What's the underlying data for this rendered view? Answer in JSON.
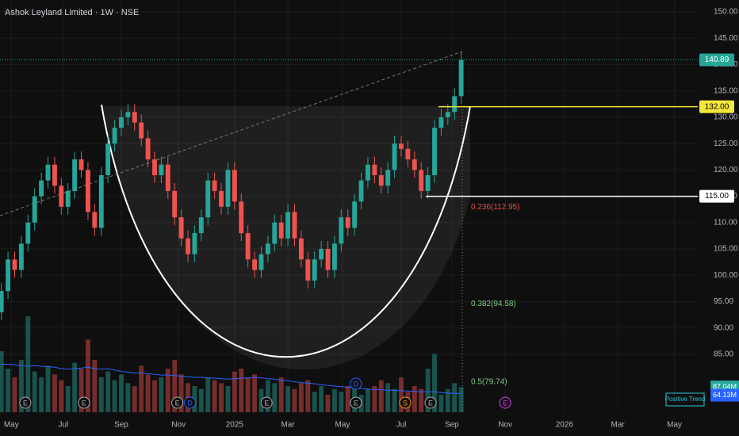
{
  "chart_data": {
    "type": "candlestick",
    "title": "Ashok Leyland Limited · 1W · NSE",
    "open": [
      93,
      97,
      103,
      101,
      106,
      110,
      115,
      118,
      121,
      117,
      113,
      116,
      122,
      120,
      112,
      109,
      119,
      125,
      128,
      130,
      131,
      129,
      126,
      122,
      119,
      121,
      116,
      111,
      107,
      104,
      108,
      111,
      118,
      116,
      113,
      120,
      114,
      108,
      103,
      101,
      104,
      106,
      110,
      107,
      112,
      107,
      103,
      99,
      103,
      105,
      101,
      106,
      111,
      109,
      114,
      118,
      121,
      119,
      117,
      120,
      125,
      124,
      122,
      120,
      116,
      119,
      128,
      130,
      131,
      134
    ],
    "high": [
      98.5,
      104.5,
      104.5,
      107.5,
      111.5,
      116.5,
      119.5,
      122.5,
      122.5,
      118.5,
      117.5,
      123.5,
      123.5,
      121.5,
      113.5,
      120.5,
      126.5,
      129.5,
      131.5,
      132.5,
      132.5,
      130.5,
      127.5,
      123.5,
      122.5,
      122.5,
      117.5,
      112.5,
      108.5,
      109.5,
      112.5,
      119.5,
      119.5,
      117.5,
      121.5,
      121.5,
      115.5,
      109.5,
      104.5,
      105.5,
      107.5,
      111.5,
      111.5,
      113.5,
      113.5,
      108.5,
      104.5,
      104.5,
      106.5,
      106.5,
      107.5,
      112.5,
      112.5,
      115.5,
      119.5,
      122.5,
      122.5,
      120.5,
      121.5,
      126.5,
      126.5,
      125.5,
      123.5,
      121.5,
      120.5,
      129.5,
      131.5,
      132.5,
      135.5,
      142.4
    ],
    "low": [
      91.5,
      95.5,
      99.5,
      99.5,
      104.5,
      108.5,
      113.5,
      116.5,
      115.5,
      111.5,
      111.5,
      114.5,
      118.5,
      110.5,
      107.5,
      107.5,
      117.5,
      123.5,
      126.5,
      128.5,
      127.5,
      124.5,
      120.5,
      117.5,
      117.5,
      114.5,
      109.5,
      105.5,
      102.5,
      102.5,
      106.5,
      109.5,
      114.5,
      111.5,
      111.5,
      112.5,
      106.5,
      101.5,
      99.5,
      99.5,
      102.5,
      104.5,
      105.5,
      105.5,
      105.5,
      101.5,
      97.5,
      97.5,
      101.5,
      99.5,
      99.5,
      104.5,
      107.5,
      107.5,
      112.5,
      116.5,
      117.5,
      115.5,
      115.5,
      118.5,
      122.5,
      120.5,
      118.5,
      114.5,
      114.5,
      117.5,
      126.5,
      128.5,
      129.5,
      132.5
    ],
    "close": [
      97,
      103,
      101,
      106,
      110,
      115,
      118,
      121,
      117,
      113,
      116,
      122,
      120,
      112,
      109,
      119,
      125,
      128,
      130,
      131,
      129,
      126,
      122,
      119,
      121,
      116,
      111,
      107,
      104,
      108,
      111,
      118,
      116,
      113,
      120,
      114,
      108,
      103,
      101,
      104,
      106,
      110,
      107,
      112,
      107,
      103,
      99,
      103,
      105,
      101,
      106,
      111,
      109,
      114,
      118,
      121,
      119,
      117,
      120,
      125,
      124,
      122,
      120,
      116,
      119,
      128,
      130,
      131,
      134,
      140.89
    ],
    "close_label": "140.89",
    "volume": [
      210,
      150,
      120,
      180,
      330,
      140,
      120,
      160,
      130,
      110,
      90,
      170,
      150,
      250,
      180,
      120,
      140,
      110,
      130,
      100,
      90,
      160,
      130,
      110,
      120,
      150,
      180,
      130,
      100,
      90,
      80,
      120,
      110,
      100,
      90,
      140,
      150,
      120,
      130,
      80,
      110,
      100,
      120,
      90,
      80,
      100,
      110,
      70,
      90,
      60,
      80,
      70,
      90,
      100,
      60,
      80,
      90,
      110,
      100,
      80,
      120,
      70,
      90,
      80,
      150,
      200,
      60,
      80,
      100,
      87.04
    ],
    "volume_label": "87.04M",
    "volume_ma": [
      165,
      165,
      163,
      160,
      158,
      160,
      158,
      157,
      155,
      150,
      148,
      150,
      152,
      155,
      150,
      148,
      150,
      145,
      140,
      138,
      135,
      135,
      133,
      130,
      128,
      128,
      126,
      124,
      122,
      120,
      120,
      118,
      117,
      115,
      114,
      115,
      117,
      118,
      120,
      118,
      115,
      114,
      110,
      108,
      105,
      102,
      100,
      98,
      95,
      92,
      90,
      88,
      86,
      84,
      82,
      80,
      78,
      77,
      76,
      75,
      74,
      73,
      72,
      70,
      70,
      70,
      68,
      66,
      65,
      64.13
    ],
    "volume_ma_label": "64.13M",
    "vlim": [
      0,
      300
    ],
    "xlim": [
      -0.2,
      104.5
    ],
    "xticks": [
      {
        "value": 1.5,
        "label": "May"
      },
      {
        "value": 9.3,
        "label": "Jul"
      },
      {
        "value": 18,
        "label": "Sep"
      },
      {
        "value": 26.6,
        "label": "Nov"
      },
      {
        "value": 35,
        "label": "2025"
      },
      {
        "value": 43,
        "label": "Mar"
      },
      {
        "value": 51.2,
        "label": "May"
      },
      {
        "value": 60,
        "label": "Jul"
      },
      {
        "value": 67.6,
        "label": "Sep"
      },
      {
        "value": 75.6,
        "label": "Nov"
      },
      {
        "value": 84.5,
        "label": "2026"
      },
      {
        "value": 92.5,
        "label": "Mar"
      },
      {
        "value": 101,
        "label": "May"
      }
    ],
    "ylim": [
      74,
      152.26
    ],
    "yticks": [
      {
        "value": 85,
        "label": "85.00"
      },
      {
        "value": 90,
        "label": "90.00"
      },
      {
        "value": 95,
        "label": "95.00"
      },
      {
        "value": 100,
        "label": "100.00"
      },
      {
        "value": 105,
        "label": "105.00"
      },
      {
        "value": 110,
        "label": "110.00"
      },
      {
        "value": 115,
        "label": "115.00"
      },
      {
        "value": 120,
        "label": "120.00"
      },
      {
        "value": 125,
        "label": "125.00"
      },
      {
        "value": 130,
        "label": "130.00"
      },
      {
        "value": 135,
        "label": "135.00"
      },
      {
        "value": 140,
        "label": "140.00"
      },
      {
        "value": 145,
        "label": "145.00"
      },
      {
        "value": 150,
        "label": "150.00"
      }
    ],
    "levels": [
      {
        "value": 132,
        "label": "132.00",
        "color": "#f5e63c"
      },
      {
        "value": 115,
        "label": "115.00",
        "color": "#ffffff"
      }
    ],
    "fib": [
      {
        "value": 112.95,
        "label": "0.236(112.95)",
        "color": "#e0524f"
      },
      {
        "value": 94.58,
        "label": "0.382(94.58)",
        "color": "#81c784"
      },
      {
        "value": 79.74,
        "label": "0.5(79.74)",
        "color": "#81c784"
      }
    ],
    "events": [
      {
        "x": 3.6,
        "label": "E"
      },
      {
        "x": 12.4,
        "label": "E"
      },
      {
        "x": 26.4,
        "label": "E"
      },
      {
        "x": 28.3,
        "label": "D"
      },
      {
        "x": 39.8,
        "label": "E"
      },
      {
        "x": 53.2,
        "label": "D"
      },
      {
        "x": 53.2,
        "label": "E"
      },
      {
        "x": 60.6,
        "label": "S"
      },
      {
        "x": 64.4,
        "label": "E"
      },
      {
        "x": 75.6,
        "label": "E"
      }
    ],
    "badge": "Positive Trend",
    "up_color": "#26a69a",
    "down_color": "#ef5350"
  }
}
